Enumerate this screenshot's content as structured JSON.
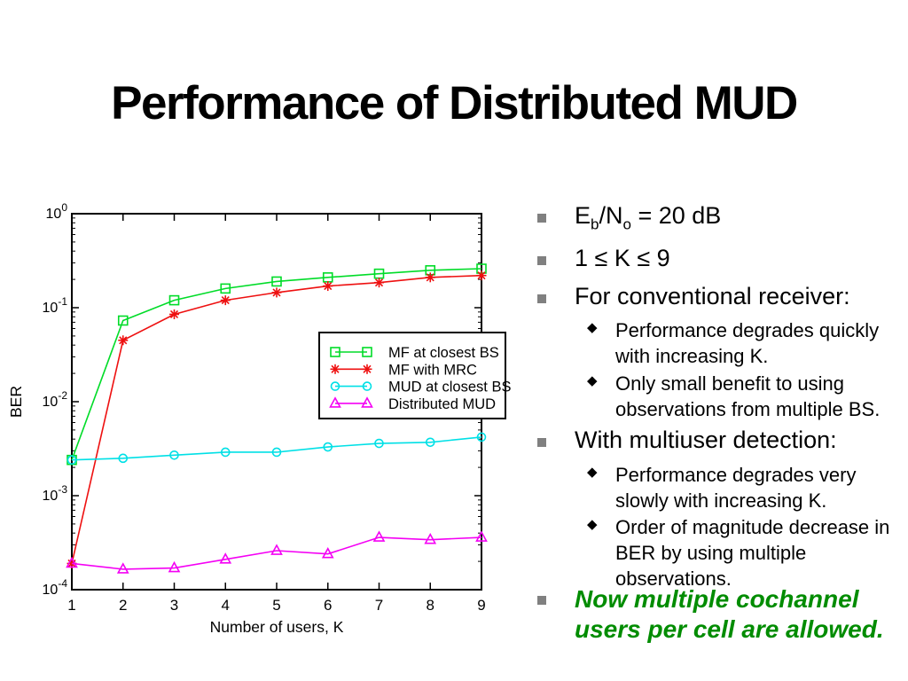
{
  "title": "Performance of Distributed MUD",
  "bullets": {
    "ebno": {
      "parts": [
        "E",
        "b",
        "/N",
        "o",
        " = 20 dB"
      ]
    },
    "krange": "1 ≤ K ≤ 9",
    "conventional": "For conventional receiver:",
    "sub_quickly": "Performance degrades quickly\nwith increasing K.",
    "sub_small_benefit": "Only small benefit to using\nobservations from multiple BS.",
    "multiuser": "With multiuser detection:",
    "sub_slowly": "Performance degrades very\nslowly with increasing K.",
    "sub_order": "Order of magnitude decrease in\nBER by using multiple\nobservations.",
    "cochannel": "Now multiple cochannel\nusers per cell are allowed."
  },
  "icons": {
    "square_bullet": "square-bullet-icon",
    "diamond_bullet": "◆"
  },
  "colors": {
    "text": "#000000",
    "gray_bullet": "#808080",
    "green_text": "#008c00",
    "series_green": "#00dc28",
    "series_red": "#ee1010",
    "series_cyan": "#00e0e6",
    "series_magenta": "#f400f4"
  },
  "chart_data": {
    "type": "line",
    "x": [
      1,
      2,
      3,
      4,
      5,
      6,
      7,
      8,
      9
    ],
    "xlabel": "Number of users, K",
    "ylabel": "BER",
    "xlim": [
      1,
      9
    ],
    "ylim_exp": [
      0,
      -4
    ],
    "yscale": "log",
    "grid": false,
    "ytick_labels": [
      "10^0",
      "10^-1",
      "10^-2",
      "10^-3",
      "10^-4"
    ],
    "xtick_labels": [
      "1",
      "2",
      "3",
      "4",
      "5",
      "6",
      "7",
      "8",
      "9"
    ],
    "legend_position": "middle-right-inside",
    "series": [
      {
        "name": "MF at closest BS",
        "color": "#00dc28",
        "marker": "square",
        "values": [
          0.0024,
          0.073,
          0.12,
          0.16,
          0.19,
          0.21,
          0.23,
          0.25,
          0.26
        ]
      },
      {
        "name": "MF with MRC",
        "color": "#ee1010",
        "marker": "star",
        "values": [
          0.00019,
          0.045,
          0.085,
          0.12,
          0.145,
          0.17,
          0.185,
          0.21,
          0.22
        ]
      },
      {
        "name": "MUD at closest BS",
        "color": "#00e0e6",
        "marker": "circle",
        "values": [
          0.0024,
          0.0025,
          0.0027,
          0.0029,
          0.0029,
          0.0033,
          0.0036,
          0.0037,
          0.0042
        ]
      },
      {
        "name": "Distributed MUD",
        "color": "#f400f4",
        "marker": "triangle",
        "values": [
          0.00019,
          0.000165,
          0.00017,
          0.00021,
          0.00026,
          0.00024,
          0.00036,
          0.00034,
          0.00036
        ]
      }
    ]
  }
}
